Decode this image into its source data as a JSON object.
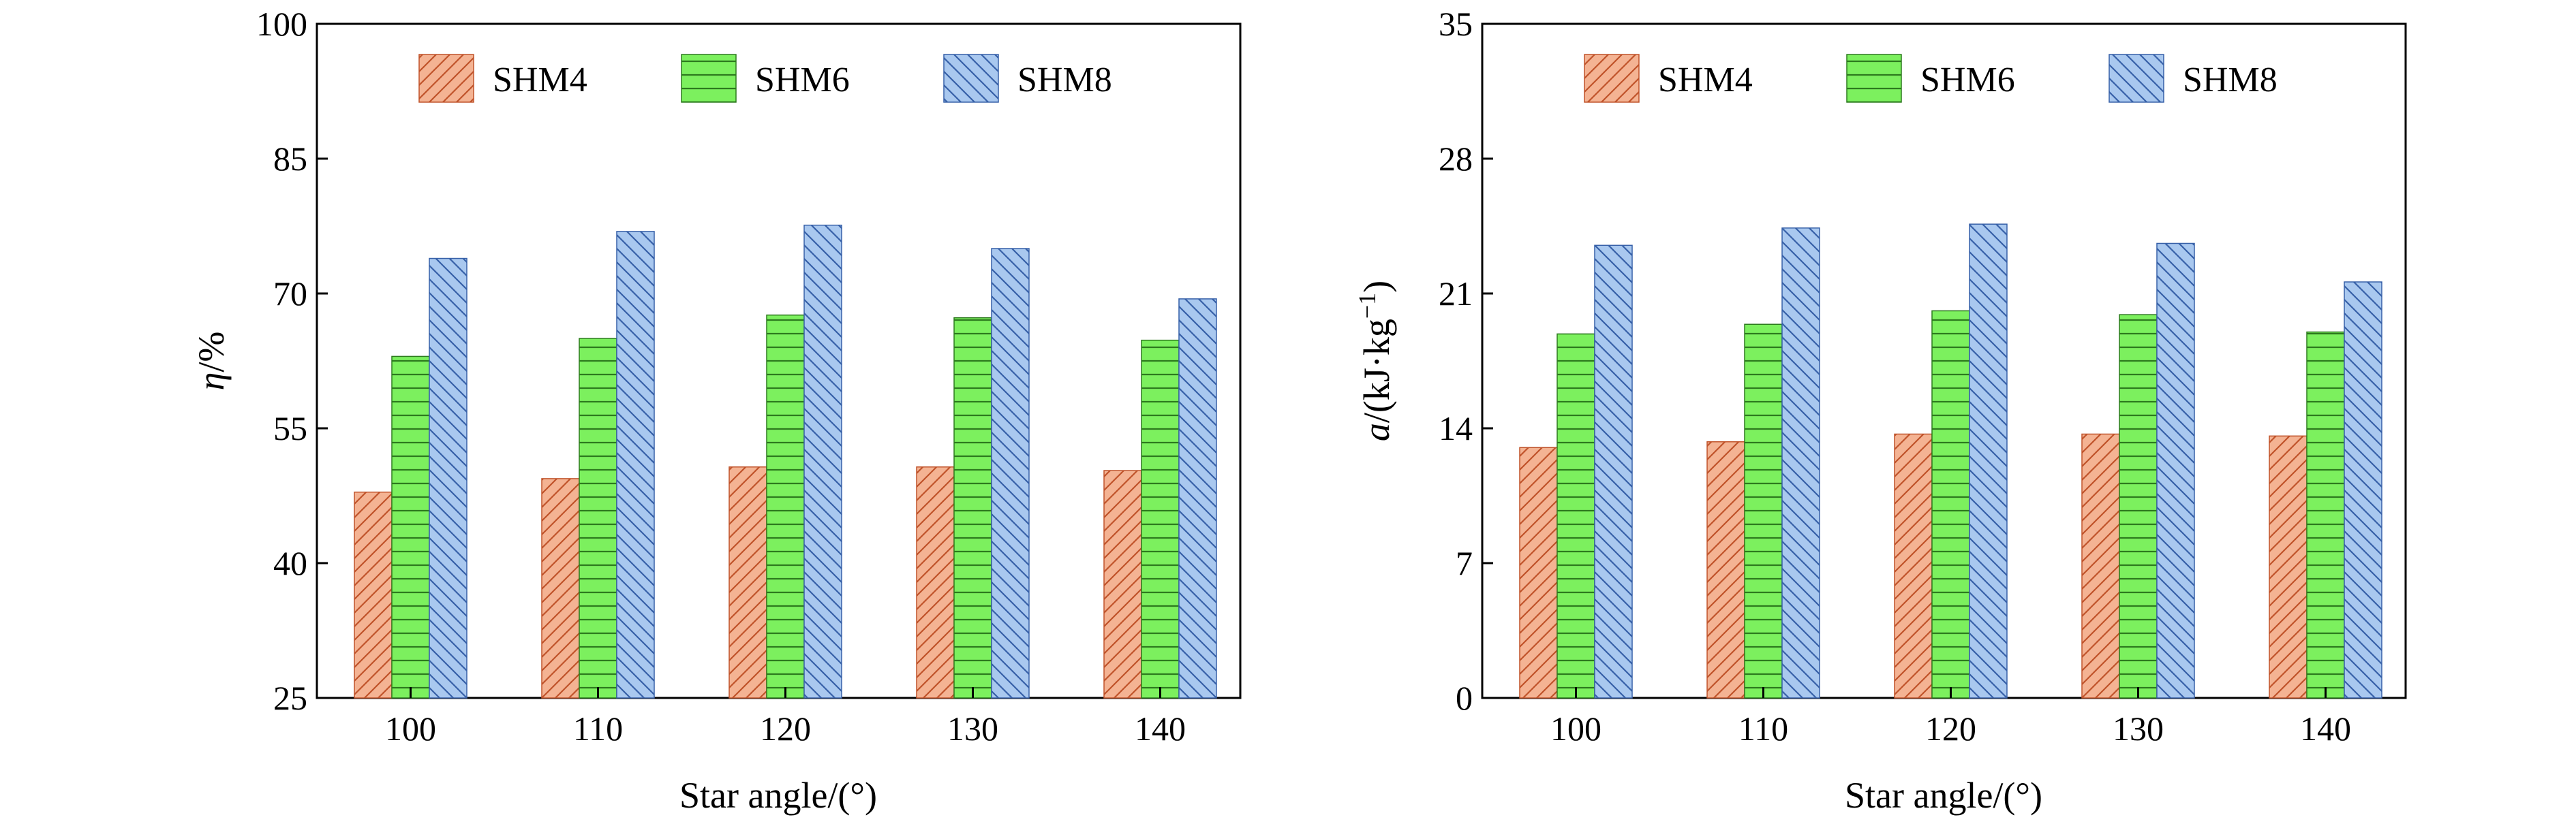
{
  "chart_data": [
    {
      "type": "bar",
      "categories": [
        "100",
        "110",
        "120",
        "130",
        "140"
      ],
      "xlabel": "Star angle/(°)",
      "ylabel_main": "η",
      "ylabel_unit": "/%",
      "ylim": [
        25,
        100
      ],
      "yticks": [
        "25",
        "40",
        "55",
        "70",
        "85",
        "100"
      ],
      "legend": "top",
      "series": [
        {
          "name": "SHM4",
          "values": [
            47.9,
            49.4,
            50.7,
            50.7,
            50.3
          ]
        },
        {
          "name": "SHM6",
          "values": [
            63.0,
            65.0,
            67.6,
            67.3,
            64.8
          ]
        },
        {
          "name": "SHM8",
          "values": [
            73.9,
            76.9,
            77.6,
            75.0,
            69.4
          ]
        }
      ]
    },
    {
      "type": "bar",
      "categories": [
        "100",
        "110",
        "120",
        "130",
        "140"
      ],
      "xlabel": "Star angle/(°)",
      "ylabel_main": "a",
      "ylabel_unit": "/(kJ·kg",
      "ylabel_sup": "−1",
      "ylabel_close": ")",
      "ylim": [
        0,
        35
      ],
      "yticks": [
        "0",
        "7",
        "14",
        "21",
        "28",
        "35"
      ],
      "legend": "top",
      "series": [
        {
          "name": "SHM4",
          "values": [
            13.0,
            13.3,
            13.7,
            13.7,
            13.6
          ]
        },
        {
          "name": "SHM6",
          "values": [
            18.9,
            19.4,
            20.1,
            19.9,
            19.0
          ]
        },
        {
          "name": "SHM8",
          "values": [
            23.5,
            24.4,
            24.6,
            23.6,
            21.6
          ]
        }
      ]
    }
  ],
  "styles": [
    {
      "fill": "#f4b393",
      "stroke": "#c0532a",
      "pattern": "hatch-diag-right"
    },
    {
      "fill": "#7cf05e",
      "stroke": "#2d7a1e",
      "pattern": "hatch-horizontal"
    },
    {
      "fill": "#a9c8ef",
      "stroke": "#3760a8",
      "pattern": "hatch-diag-left"
    }
  ]
}
